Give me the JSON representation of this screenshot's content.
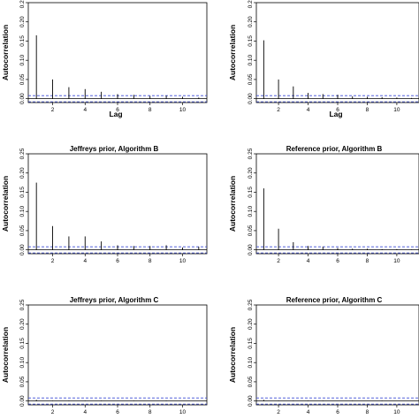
{
  "chart_data": [
    {
      "type": "bar",
      "title": "",
      "xlabel": "Lag",
      "ylabel": "Autocorrelation",
      "x": [
        1,
        2,
        3,
        4,
        5,
        6,
        7,
        8,
        9,
        10,
        11
      ],
      "values": [
        0.165,
        0.05,
        0.03,
        0.025,
        0.018,
        0.012,
        0.01,
        0.007,
        0.008,
        0.005,
        0.003
      ],
      "xticks": [
        "2",
        "4",
        "6",
        "8",
        "10"
      ],
      "yticks": [
        "0.00",
        "0.05",
        "0.10",
        "0.15",
        "0.20",
        "0.25"
      ],
      "xlim": [
        0.5,
        11.5
      ],
      "ylim": [
        -0.01,
        0.25
      ],
      "confidence_band": [
        -0.008,
        0.008
      ]
    },
    {
      "type": "bar",
      "title": "",
      "xlabel": "Lag",
      "ylabel": "Autocorrelation",
      "x": [
        1,
        2,
        3,
        4,
        5,
        6,
        7,
        8,
        9,
        10,
        11
      ],
      "values": [
        0.152,
        0.05,
        0.032,
        0.015,
        0.012,
        0.01,
        0.006,
        0.005,
        0.004,
        0.003,
        0.002
      ],
      "xticks": [
        "2",
        "4",
        "6",
        "8",
        "10"
      ],
      "yticks": [
        "0.00",
        "0.05",
        "0.10",
        "0.15",
        "0.20",
        "0.25"
      ],
      "xlim": [
        0.5,
        11.5
      ],
      "ylim": [
        -0.01,
        0.25
      ],
      "confidence_band": [
        -0.008,
        0.008
      ]
    },
    {
      "type": "bar",
      "title": "Jeffreys prior, Algorithm B",
      "xlabel": "",
      "ylabel": "Autocorrelation",
      "x": [
        1,
        2,
        3,
        4,
        5,
        6,
        7,
        8,
        9,
        10,
        11
      ],
      "values": [
        0.175,
        0.062,
        0.035,
        0.035,
        0.022,
        0.012,
        0.01,
        0.01,
        0.012,
        0.006,
        0.008
      ],
      "xticks": [
        "2",
        "4",
        "6",
        "8",
        "10"
      ],
      "yticks": [
        "0.00",
        "0.05",
        "0.10",
        "0.15",
        "0.20",
        "0.25"
      ],
      "xlim": [
        0.5,
        11.5
      ],
      "ylim": [
        -0.01,
        0.25
      ],
      "confidence_band": [
        -0.008,
        0.008
      ]
    },
    {
      "type": "bar",
      "title": "Reference prior, Algorithm B",
      "xlabel": "",
      "ylabel": "Autocorrelation",
      "x": [
        1,
        2,
        3,
        4,
        5,
        6,
        7,
        8,
        9,
        10,
        11
      ],
      "values": [
        0.16,
        0.055,
        0.02,
        0.01,
        0.008,
        0.005,
        0.003,
        0.003,
        0.002,
        0.002,
        0.001
      ],
      "xticks": [
        "2",
        "4",
        "6",
        "8",
        "10"
      ],
      "yticks": [
        "0.00",
        "0.05",
        "0.10",
        "0.15",
        "0.20",
        "0.25"
      ],
      "xlim": [
        0.5,
        11.5
      ],
      "ylim": [
        -0.01,
        0.25
      ],
      "confidence_band": [
        -0.008,
        0.008
      ]
    },
    {
      "type": "bar",
      "title": "Jeffreys prior, Algorithm C",
      "xlabel": "",
      "ylabel": "Autocorrelation",
      "x": [
        1,
        2,
        3,
        4,
        5,
        6,
        7,
        8,
        9,
        10,
        11
      ],
      "values": [
        0.003,
        0.001,
        0.001,
        0.001,
        0.001,
        0.0,
        0.001,
        0.0,
        0.001,
        0.0,
        0.0
      ],
      "xticks": [
        "2",
        "4",
        "6",
        "8",
        "10"
      ],
      "yticks": [
        "0.00",
        "0.05",
        "0.10",
        "0.15",
        "0.20",
        "0.25"
      ],
      "xlim": [
        0.5,
        11.5
      ],
      "ylim": [
        -0.01,
        0.25
      ],
      "confidence_band": [
        -0.008,
        0.008
      ]
    },
    {
      "type": "bar",
      "title": "Reference prior, Algorithm C",
      "xlabel": "",
      "ylabel": "Autocorrelation",
      "x": [
        1,
        2,
        3,
        4,
        5,
        6,
        7,
        8,
        9,
        10,
        11
      ],
      "values": [
        0.003,
        0.001,
        0.001,
        0.001,
        0.001,
        0.0,
        0.001,
        0.0,
        0.001,
        0.0,
        0.0
      ],
      "xticks": [
        "2",
        "4",
        "6",
        "8",
        "10"
      ],
      "yticks": [
        "0.00",
        "0.05",
        "0.10",
        "0.15",
        "0.20",
        "0.25"
      ],
      "xlim": [
        0.5,
        11.5
      ],
      "ylim": [
        -0.01,
        0.25
      ],
      "confidence_band": [
        -0.008,
        0.008
      ]
    }
  ]
}
